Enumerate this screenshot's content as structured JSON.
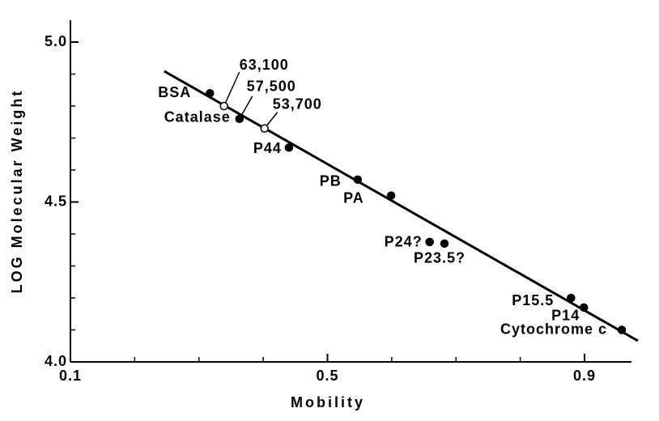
{
  "chart_data": {
    "type": "scatter",
    "x_label": "Mobility",
    "y_label": "LOG Molecular Weight",
    "xlim": [
      0.1,
      0.975
    ],
    "ylim": [
      4.0,
      5.07
    ],
    "xticks": [
      0.1,
      0.5,
      0.9
    ],
    "xminor": [
      0.2,
      0.3,
      0.4,
      0.6,
      0.7,
      0.8
    ],
    "yticks": [
      {
        "value": 4.0,
        "label": "4.0"
      },
      {
        "value": 4.5,
        "label": "4.5"
      },
      {
        "value": 5.0,
        "label": "5.0"
      }
    ],
    "yminor": [
      4.1,
      4.2,
      4.3,
      4.4,
      4.6,
      4.7,
      4.8,
      4.9
    ],
    "color": "#000000",
    "points": [
      {
        "labels": [
          "BSA"
        ],
        "x": 0.317,
        "y": 4.84,
        "marker": "filled"
      },
      {
        "labels": [
          "63,100"
        ],
        "x": 0.339,
        "y": 4.8,
        "marker": "open"
      },
      {
        "labels": [
          "Catalase",
          "57,500"
        ],
        "x": 0.363,
        "y": 4.76,
        "marker": "filled"
      },
      {
        "labels": [
          "53,700"
        ],
        "x": 0.402,
        "y": 4.73,
        "marker": "open"
      },
      {
        "labels": [
          "P44"
        ],
        "x": 0.44,
        "y": 4.67,
        "marker": "filled"
      },
      {
        "labels": [
          "PB"
        ],
        "x": 0.547,
        "y": 4.57,
        "marker": "filled"
      },
      {
        "labels": [
          "PA"
        ],
        "x": 0.599,
        "y": 4.52,
        "marker": "filled"
      },
      {
        "labels": [
          "P24?"
        ],
        "x": 0.659,
        "y": 4.375,
        "marker": "filled"
      },
      {
        "labels": [
          "P23.5?"
        ],
        "x": 0.682,
        "y": 4.37,
        "marker": "filled"
      },
      {
        "labels": [
          "P15.5"
        ],
        "x": 0.879,
        "y": 4.2,
        "marker": "filled"
      },
      {
        "labels": [
          "P14"
        ],
        "x": 0.899,
        "y": 4.17,
        "marker": "filled"
      },
      {
        "labels": [
          "Cytochrome c"
        ],
        "x": 0.958,
        "y": 4.1,
        "marker": "filled"
      }
    ],
    "fit_line": {
      "x": [
        0.246,
        0.983
      ],
      "y": [
        4.909,
        4.066
      ]
    }
  }
}
